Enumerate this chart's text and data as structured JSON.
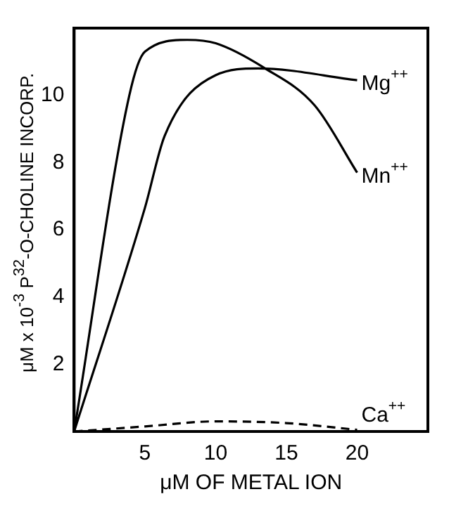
{
  "chart_data": {
    "type": "line",
    "xlabel": "μM OF METAL ION",
    "ylabel": "μM x 10$^{-3}$ P$^{32}$-O-CHOLINE INCORP.",
    "xlim": [
      0,
      25
    ],
    "xticks": [
      5,
      10,
      15,
      20
    ],
    "ylim": [
      0,
      12
    ],
    "yticks": [
      2,
      4,
      6,
      8,
      10
    ],
    "grid": false,
    "legend": false,
    "marker": "none",
    "series": [
      {
        "name": "Mg$^{++}$",
        "color": "#000000",
        "x": [
          0,
          5,
          6.4,
          10,
          13,
          20
        ],
        "values": [
          0,
          6.65,
          8.8,
          10.6,
          10.8,
          10.45
        ]
      },
      {
        "name": "Mn$^{++}$",
        "color": "#000000",
        "x": [
          0,
          3.9,
          5,
          8,
          10,
          13.5,
          17,
          20
        ],
        "values": [
          0,
          10,
          11.3,
          11.65,
          11.55,
          10.8,
          9.7,
          7.7
        ]
      },
      {
        "name": "Ca$^{++}$",
        "color": "#000000",
        "line_style": "dashed",
        "x": [
          0,
          5,
          10,
          15,
          20
        ],
        "values": [
          0,
          0.15,
          0.3,
          0.25,
          0.05
        ]
      }
    ]
  }
}
